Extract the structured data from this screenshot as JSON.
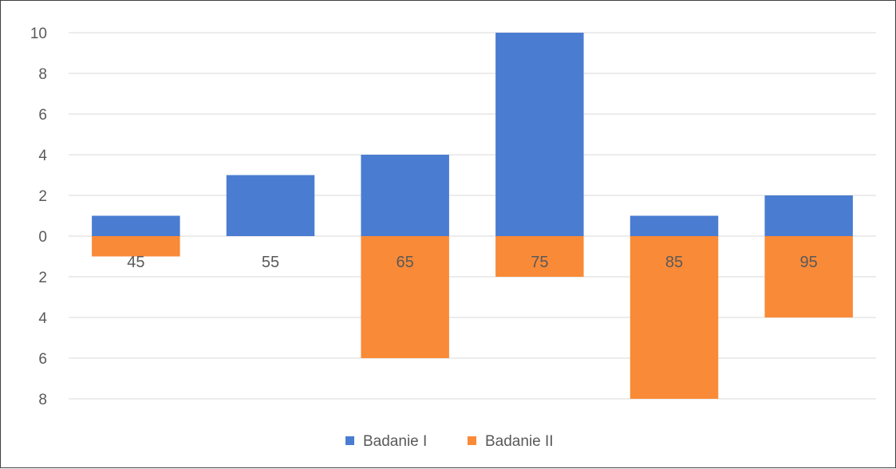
{
  "chart_data": {
    "type": "bar",
    "stacked": true,
    "title": "",
    "xlabel": "",
    "ylabel": "",
    "categories": [
      "45",
      "55",
      "65",
      "75",
      "85",
      "95"
    ],
    "series": [
      {
        "name": "Badanie I",
        "color": "#4a7cd1",
        "values": [
          1,
          3,
          4,
          10,
          1,
          2
        ]
      },
      {
        "name": "Badanie II",
        "color": "#f98a37",
        "values": [
          -1,
          0,
          -6,
          -2,
          -8,
          -4
        ]
      }
    ],
    "ylim": [
      -8,
      10
    ],
    "yticks": [
      10,
      8,
      6,
      4,
      2,
      0,
      -2,
      -4,
      -6,
      -8
    ],
    "ytick_labels": [
      "10",
      "8",
      "6",
      "4",
      "2",
      "0",
      "2",
      "4",
      "6",
      "8"
    ],
    "grid": true,
    "gridline_color": "#d9d9d9",
    "legend_position": "bottom"
  }
}
